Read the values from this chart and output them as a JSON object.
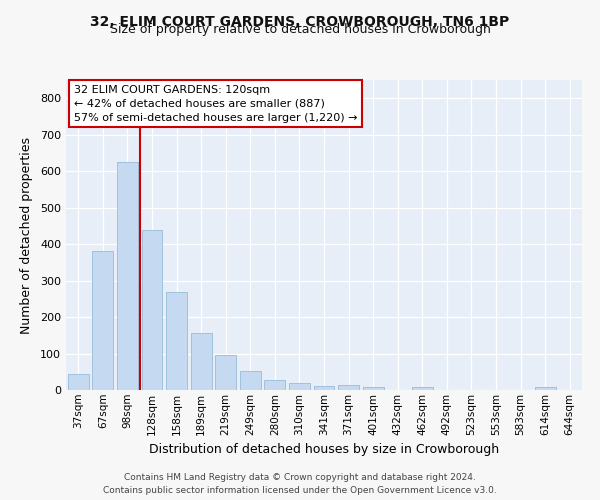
{
  "title1": "32, ELIM COURT GARDENS, CROWBOROUGH, TN6 1BP",
  "title2": "Size of property relative to detached houses in Crowborough",
  "xlabel": "Distribution of detached houses by size in Crowborough",
  "ylabel": "Number of detached properties",
  "categories": [
    "37sqm",
    "67sqm",
    "98sqm",
    "128sqm",
    "158sqm",
    "189sqm",
    "219sqm",
    "249sqm",
    "280sqm",
    "310sqm",
    "341sqm",
    "371sqm",
    "401sqm",
    "432sqm",
    "462sqm",
    "492sqm",
    "523sqm",
    "553sqm",
    "583sqm",
    "614sqm",
    "644sqm"
  ],
  "values": [
    45,
    380,
    625,
    440,
    270,
    155,
    95,
    53,
    28,
    18,
    12,
    15,
    8,
    0,
    8,
    0,
    0,
    0,
    0,
    8,
    0
  ],
  "bar_color": "#c5d9f1",
  "bar_edge_color": "#8ab4d4",
  "vline_color": "#cc0000",
  "vline_x": 2.5,
  "annotation_line1": "32 ELIM COURT GARDENS: 120sqm",
  "annotation_line2": "← 42% of detached houses are smaller (887)",
  "annotation_line3": "57% of semi-detached houses are larger (1,220) →",
  "annotation_box_edgecolor": "#cc0000",
  "ylim_max": 850,
  "yticks": [
    0,
    100,
    200,
    300,
    400,
    500,
    600,
    700,
    800
  ],
  "bg_color": "#e8eef8",
  "grid_color": "#ffffff",
  "fig_bg_color": "#f7f7f7",
  "footer": "Contains HM Land Registry data © Crown copyright and database right 2024.\nContains public sector information licensed under the Open Government Licence v3.0.",
  "title1_fontsize": 10,
  "title2_fontsize": 9,
  "ylabel_fontsize": 9,
  "xlabel_fontsize": 9,
  "tick_fontsize": 8,
  "xtick_fontsize": 7.5,
  "annotation_fontsize": 8,
  "footer_fontsize": 6.5
}
